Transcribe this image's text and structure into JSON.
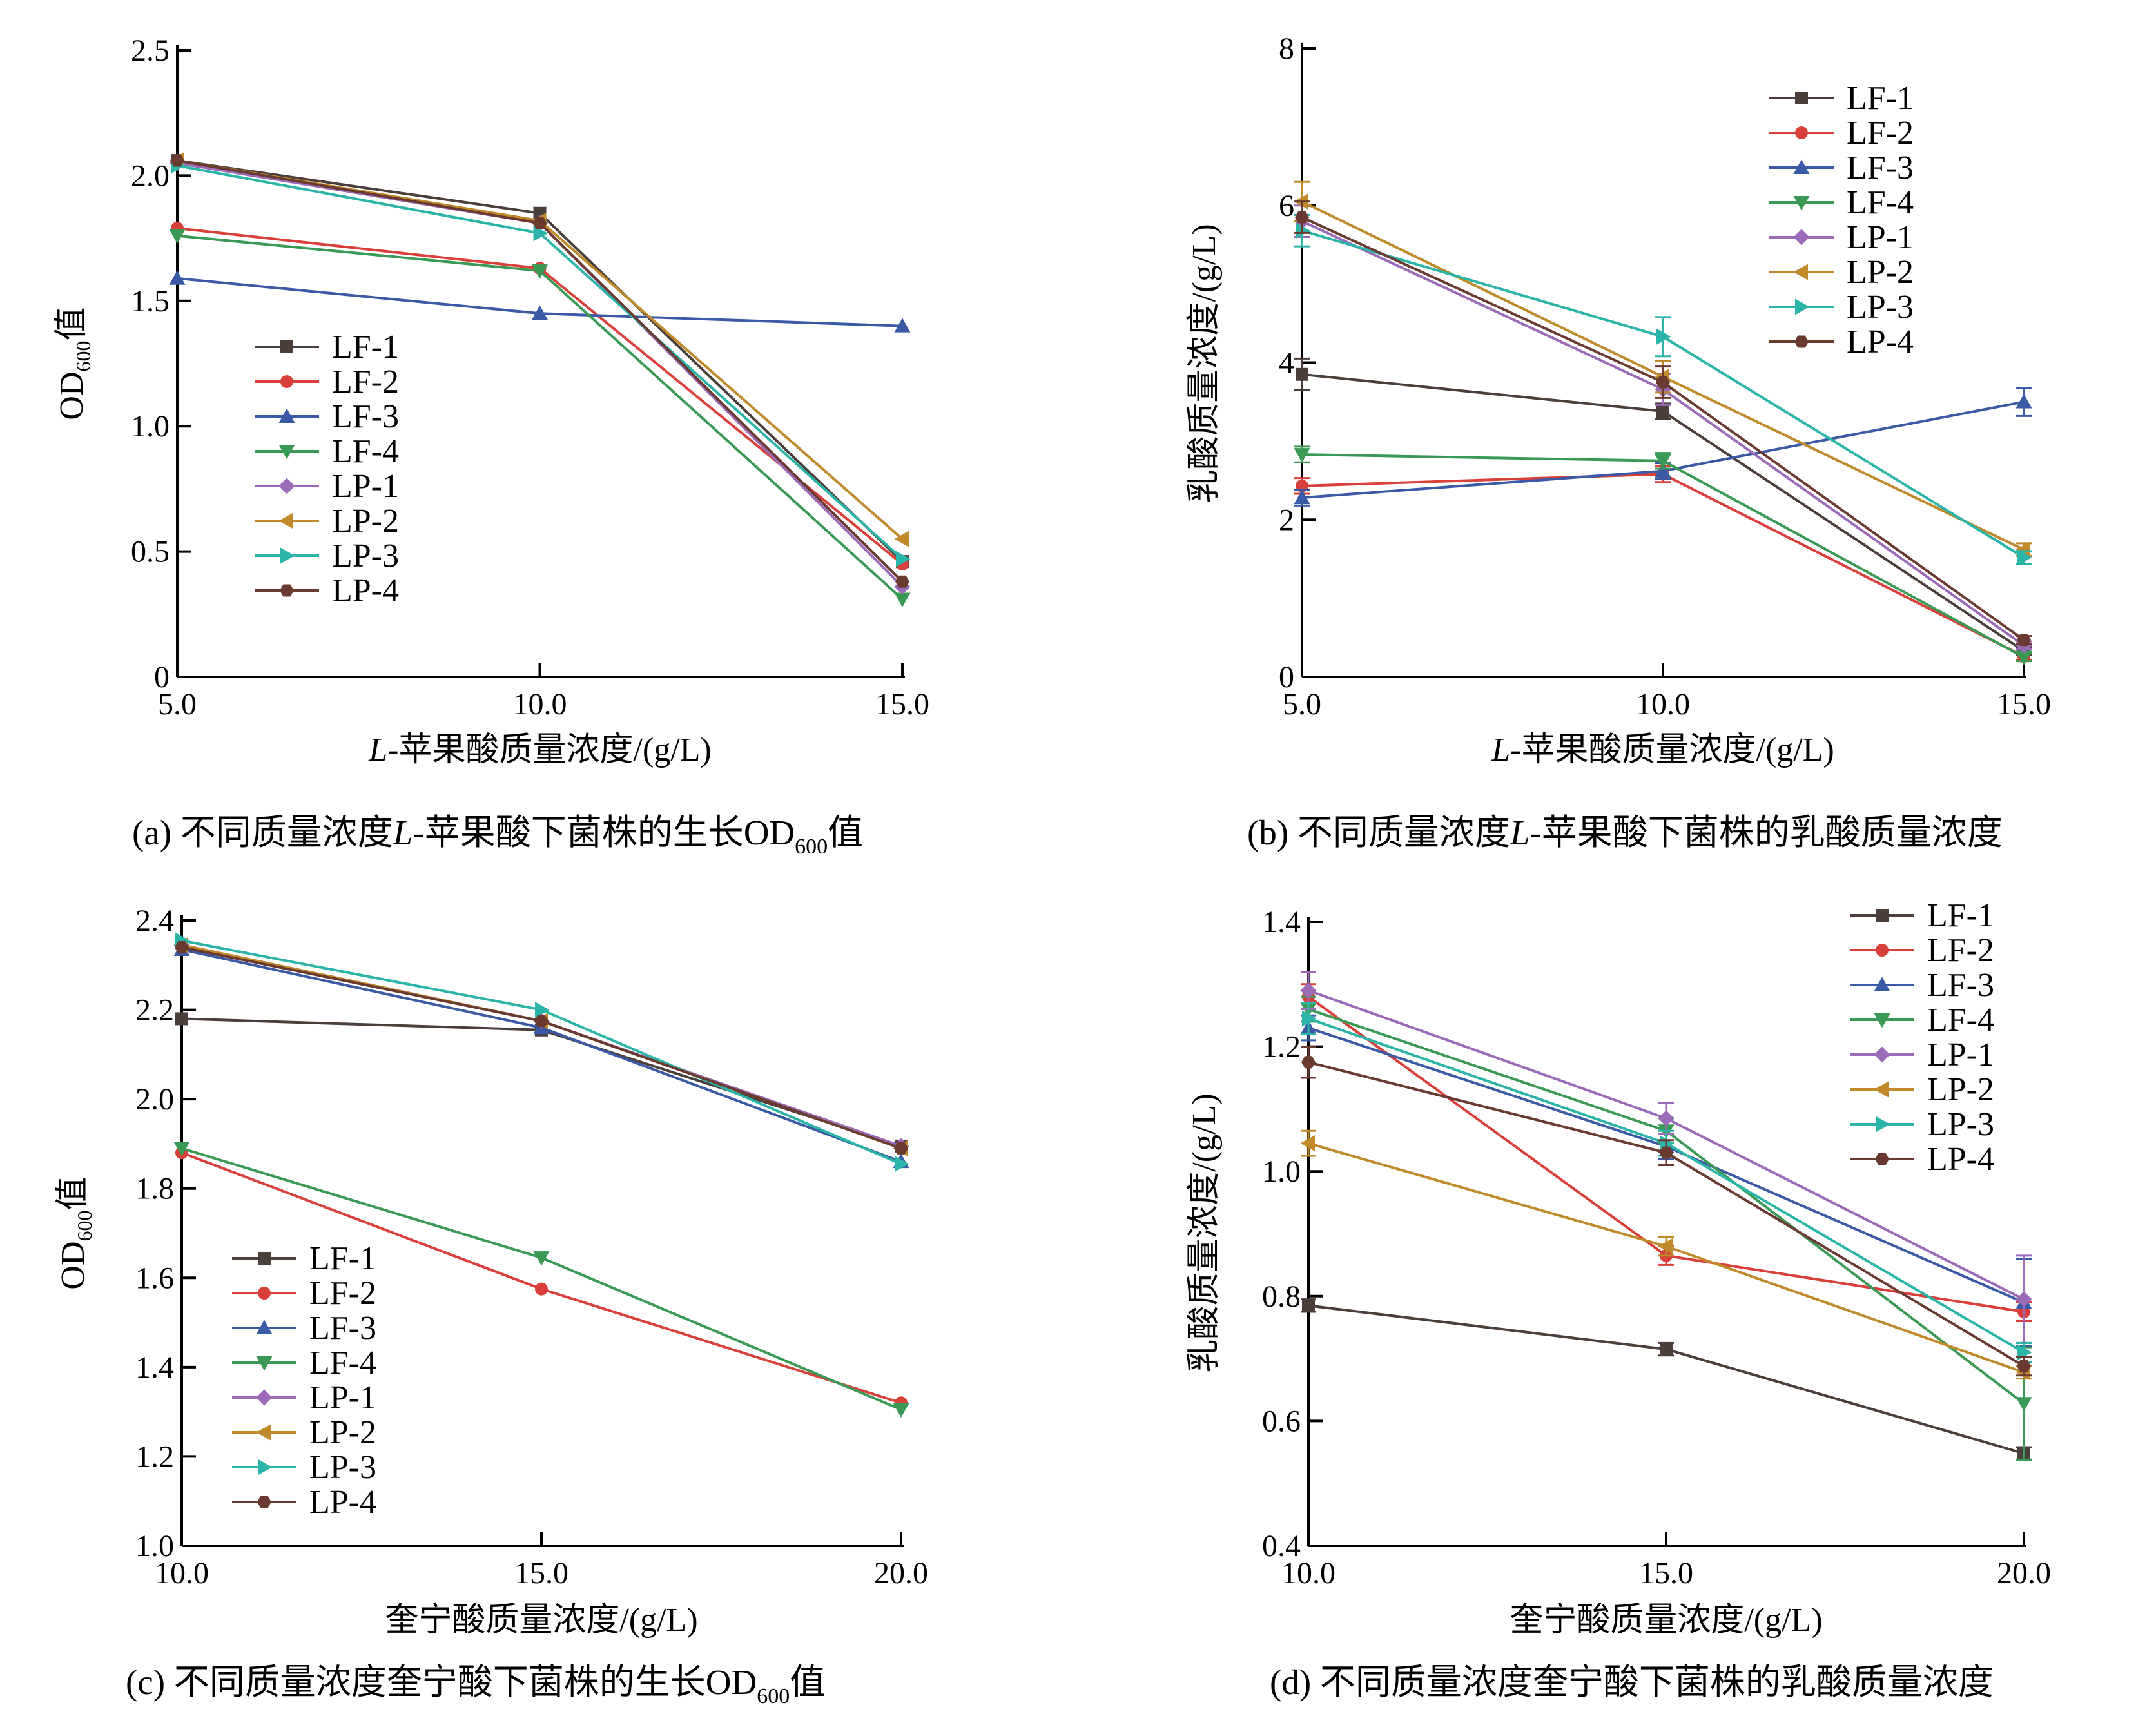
{
  "colors": {
    "LF-1": "#4a3f3a",
    "LF-2": "#d9403a",
    "LF-3": "#3a5aa6",
    "LF-4": "#3a9a55",
    "LP-1": "#9b6ab8",
    "LP-2": "#c08a2a",
    "LP-3": "#2ab5a8",
    "LP-4": "#6a3a30"
  },
  "markers": {
    "LF-1": "square",
    "LF-2": "circle",
    "LF-3": "triangle-up",
    "LF-4": "triangle-down",
    "LP-1": "diamond",
    "LP-2": "triangle-left",
    "LP-3": "triangle-right",
    "LP-4": "hexagon"
  },
  "chart_data": [
    {
      "id": "a",
      "type": "line",
      "caption_parts": [
        "(a) 不同质量浓度",
        "L",
        "-苹果酸下菌株的生长OD",
        "600",
        "值"
      ],
      "xlabel_parts": [
        "L",
        "-苹果酸质量浓度/(g/L)"
      ],
      "ylabel_parts": [
        "OD",
        "600",
        "值"
      ],
      "x": [
        5.0,
        10.0,
        15.0
      ],
      "xticks": [
        "5.0",
        "10.0",
        "15.0"
      ],
      "xlim": [
        5.0,
        15.0
      ],
      "ylim": [
        0,
        2.5
      ],
      "yticks": [
        "0",
        "0.5",
        "1.0",
        "1.5",
        "2.0",
        "2.5"
      ],
      "yticks_values": [
        0,
        0.5,
        1.0,
        1.5,
        2.0,
        2.5
      ],
      "legend_position": "middle-left",
      "series": [
        {
          "name": "LF-1",
          "values": [
            2.06,
            1.85,
            0.46
          ]
        },
        {
          "name": "LF-2",
          "values": [
            1.79,
            1.63,
            0.45
          ]
        },
        {
          "name": "LF-3",
          "values": [
            1.59,
            1.45,
            1.4
          ]
        },
        {
          "name": "LF-4",
          "values": [
            1.76,
            1.62,
            0.31
          ]
        },
        {
          "name": "LP-1",
          "values": [
            2.05,
            1.81,
            0.36
          ]
        },
        {
          "name": "LP-2",
          "values": [
            2.06,
            1.82,
            0.55
          ]
        },
        {
          "name": "LP-3",
          "values": [
            2.04,
            1.77,
            0.47
          ]
        },
        {
          "name": "LP-4",
          "values": [
            2.06,
            1.81,
            0.38
          ]
        }
      ]
    },
    {
      "id": "b",
      "type": "line",
      "caption_parts": [
        "(b) 不同质量浓度",
        "L",
        "-苹果酸下菌株的乳酸质量浓度"
      ],
      "xlabel_parts": [
        "L",
        "-苹果酸质量浓度/(g/L)"
      ],
      "ylabel_text": "乳酸质量浓度/(g/L)",
      "x": [
        5.0,
        10.0,
        15.0
      ],
      "xticks": [
        "5.0",
        "10.0",
        "15.0"
      ],
      "xlim": [
        5.0,
        15.0
      ],
      "ylim": [
        0,
        8
      ],
      "yticks": [
        "0",
        "2",
        "4",
        "6",
        "8"
      ],
      "yticks_values": [
        0,
        2,
        4,
        6,
        8
      ],
      "legend_position": "top-right",
      "series": [
        {
          "name": "LF-1",
          "values": [
            3.85,
            3.38,
            0.33
          ],
          "err": [
            0.2,
            0.1,
            0.05
          ]
        },
        {
          "name": "LF-2",
          "values": [
            2.43,
            2.58,
            0.26
          ],
          "err": [
            0.1,
            0.1,
            0.05
          ]
        },
        {
          "name": "LF-3",
          "values": [
            2.28,
            2.62,
            3.5
          ],
          "err": [
            0.1,
            0.1,
            0.18
          ]
        },
        {
          "name": "LF-4",
          "values": [
            2.83,
            2.75,
            0.25
          ],
          "err": [
            0.1,
            0.1,
            0.05
          ]
        },
        {
          "name": "LP-1",
          "values": [
            5.8,
            3.66,
            0.4
          ],
          "err": [
            0.2,
            0.2,
            0.05
          ]
        },
        {
          "name": "LP-2",
          "values": [
            6.05,
            3.82,
            1.62
          ],
          "err": [
            0.25,
            0.2,
            0.08
          ]
        },
        {
          "name": "LP-3",
          "values": [
            5.68,
            4.33,
            1.52
          ],
          "err": [
            0.2,
            0.25,
            0.08
          ]
        },
        {
          "name": "LP-4",
          "values": [
            5.85,
            3.75,
            0.47
          ],
          "err": [
            0.2,
            0.2,
            0.05
          ]
        }
      ]
    },
    {
      "id": "c",
      "type": "line",
      "caption_parts": [
        "(c) 不同质量浓度奎宁酸下菌株的生长OD",
        "600",
        "值"
      ],
      "xlabel_parts": [
        "",
        "奎宁酸质量浓度/(g/L)"
      ],
      "ylabel_parts": [
        "OD",
        "600",
        "值"
      ],
      "x": [
        10.0,
        15.0,
        20.0
      ],
      "xticks": [
        "10.0",
        "15.0",
        "20.0"
      ],
      "xlim": [
        10.0,
        20.0
      ],
      "ylim": [
        1.0,
        2.4
      ],
      "yticks": [
        "1.0",
        "1.2",
        "1.4",
        "1.6",
        "1.8",
        "2.0",
        "2.2",
        "2.4"
      ],
      "yticks_values": [
        1.0,
        1.2,
        1.4,
        1.6,
        1.8,
        2.0,
        2.2,
        2.4
      ],
      "legend_position": "bottom-left",
      "series": [
        {
          "name": "LF-1",
          "values": [
            2.18,
            2.155,
            1.895
          ]
        },
        {
          "name": "LF-2",
          "values": [
            1.88,
            1.575,
            1.32
          ]
        },
        {
          "name": "LF-3",
          "values": [
            2.335,
            2.16,
            1.86
          ]
        },
        {
          "name": "LF-4",
          "values": [
            1.89,
            1.645,
            1.305
          ]
        },
        {
          "name": "LP-1",
          "values": [
            2.345,
            2.175,
            1.895
          ]
        },
        {
          "name": "LP-2",
          "values": [
            2.345,
            2.175,
            1.89
          ]
        },
        {
          "name": "LP-3",
          "values": [
            2.355,
            2.2,
            1.855
          ]
        },
        {
          "name": "LP-4",
          "values": [
            2.34,
            2.175,
            1.89
          ]
        }
      ]
    },
    {
      "id": "d",
      "type": "line",
      "caption_parts": [
        "(d) 不同质量浓度奎宁酸下菌株的乳酸质量浓度"
      ],
      "xlabel_parts": [
        "",
        "奎宁酸质量浓度/(g/L)"
      ],
      "ylabel_text": "乳酸质量浓度/(g/L)",
      "x": [
        10.0,
        15.0,
        20.0
      ],
      "xticks": [
        "10.0",
        "15.0",
        "20.0"
      ],
      "xlim": [
        10.0,
        20.0
      ],
      "ylim": [
        0.4,
        1.4
      ],
      "yticks": [
        "0.4",
        "0.6",
        "0.8",
        "1.0",
        "1.2",
        "1.4"
      ],
      "yticks_values": [
        0.4,
        0.6,
        0.8,
        1.0,
        1.2,
        1.4
      ],
      "legend_position": "top-right",
      "series": [
        {
          "name": "LF-1",
          "values": [
            0.785,
            0.715,
            0.548
          ],
          "err": [
            0.01,
            0.01,
            0.01
          ]
        },
        {
          "name": "LF-2",
          "values": [
            1.28,
            0.865,
            0.775
          ],
          "err": [
            0.02,
            0.015,
            0.015
          ]
        },
        {
          "name": "LF-3",
          "values": [
            1.23,
            1.04,
            0.79
          ],
          "err": [
            0.02,
            0.02,
            0.07
          ]
        },
        {
          "name": "LF-4",
          "values": [
            1.26,
            1.065,
            0.628
          ],
          "err": [
            0.02,
            0.02,
            0.09
          ]
        },
        {
          "name": "LP-1",
          "values": [
            1.29,
            1.085,
            0.795
          ],
          "err": [
            0.03,
            0.025,
            0.07
          ]
        },
        {
          "name": "LP-2",
          "values": [
            1.045,
            0.88,
            0.678
          ],
          "err": [
            0.02,
            0.015,
            0.01
          ]
        },
        {
          "name": "LP-3",
          "values": [
            1.245,
            1.045,
            0.71
          ],
          "err": [
            0.025,
            0.02,
            0.015
          ]
        },
        {
          "name": "LP-4",
          "values": [
            1.175,
            1.03,
            0.688
          ],
          "err": [
            0.025,
            0.02,
            0.015
          ]
        }
      ]
    }
  ]
}
